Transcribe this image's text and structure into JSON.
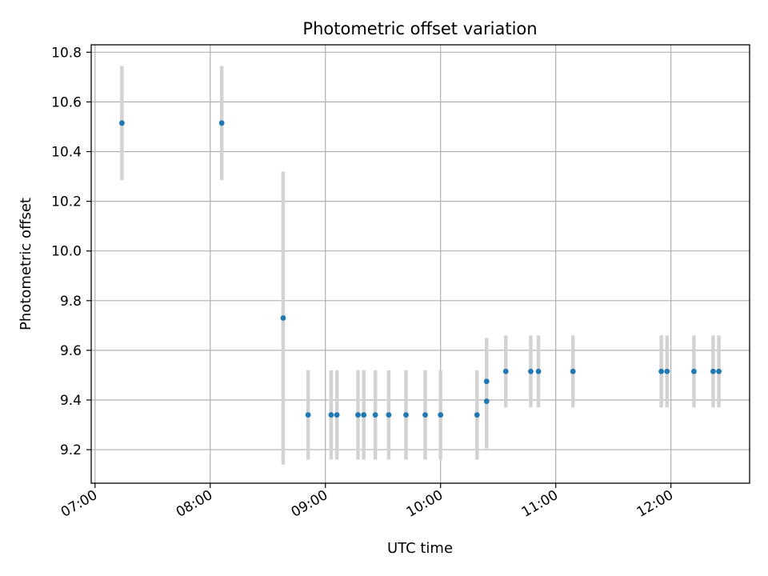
{
  "chart_data": {
    "type": "scatter",
    "title": "Photometric offset variation",
    "xlabel": "UTC time",
    "ylabel": "Photometric offset",
    "grid": true,
    "xlim": [
      "06:58",
      "12:41"
    ],
    "ylim": [
      9.065,
      10.83
    ],
    "x_ticks": [
      "07:00",
      "08:00",
      "09:00",
      "10:00",
      "11:00",
      "12:00"
    ],
    "y_ticks": [
      "9.2",
      "9.4",
      "9.6",
      "9.8",
      "10.0",
      "10.2",
      "10.4",
      "10.6",
      "10.8"
    ],
    "marker_color": "#1f77b4",
    "errorbar_color": "#d3d3d3",
    "series": [
      {
        "points": [
          {
            "x": "07:14",
            "y": 10.515,
            "err": 0.23
          },
          {
            "x": "08:06",
            "y": 10.515,
            "err": 0.23
          },
          {
            "x": "08:38",
            "y": 9.73,
            "err": 0.59
          },
          {
            "x": "08:51",
            "y": 9.34,
            "err": 0.18
          },
          {
            "x": "09:03",
            "y": 9.34,
            "err": 0.18
          },
          {
            "x": "09:06",
            "y": 9.34,
            "err": 0.18
          },
          {
            "x": "09:17",
            "y": 9.34,
            "err": 0.18
          },
          {
            "x": "09:20",
            "y": 9.34,
            "err": 0.18
          },
          {
            "x": "09:26",
            "y": 9.34,
            "err": 0.18
          },
          {
            "x": "09:33",
            "y": 9.34,
            "err": 0.18
          },
          {
            "x": "09:42",
            "y": 9.34,
            "err": 0.18
          },
          {
            "x": "09:52",
            "y": 9.34,
            "err": 0.18
          },
          {
            "x": "10:00",
            "y": 9.34,
            "err": 0.18
          },
          {
            "x": "10:19",
            "y": 9.34,
            "err": 0.18
          },
          {
            "x": "10:24",
            "y": 9.395,
            "err": 0.19
          },
          {
            "x": "10:24",
            "y": 9.475,
            "err": 0.175
          },
          {
            "x": "10:34",
            "y": 9.515,
            "err": 0.145
          },
          {
            "x": "10:47",
            "y": 9.515,
            "err": 0.145
          },
          {
            "x": "10:51",
            "y": 9.515,
            "err": 0.145
          },
          {
            "x": "11:09",
            "y": 9.515,
            "err": 0.145
          },
          {
            "x": "11:55",
            "y": 9.515,
            "err": 0.145
          },
          {
            "x": "11:58",
            "y": 9.515,
            "err": 0.145
          },
          {
            "x": "12:12",
            "y": 9.515,
            "err": 0.145
          },
          {
            "x": "12:22",
            "y": 9.515,
            "err": 0.145
          },
          {
            "x": "12:25",
            "y": 9.515,
            "err": 0.145
          }
        ]
      }
    ]
  }
}
